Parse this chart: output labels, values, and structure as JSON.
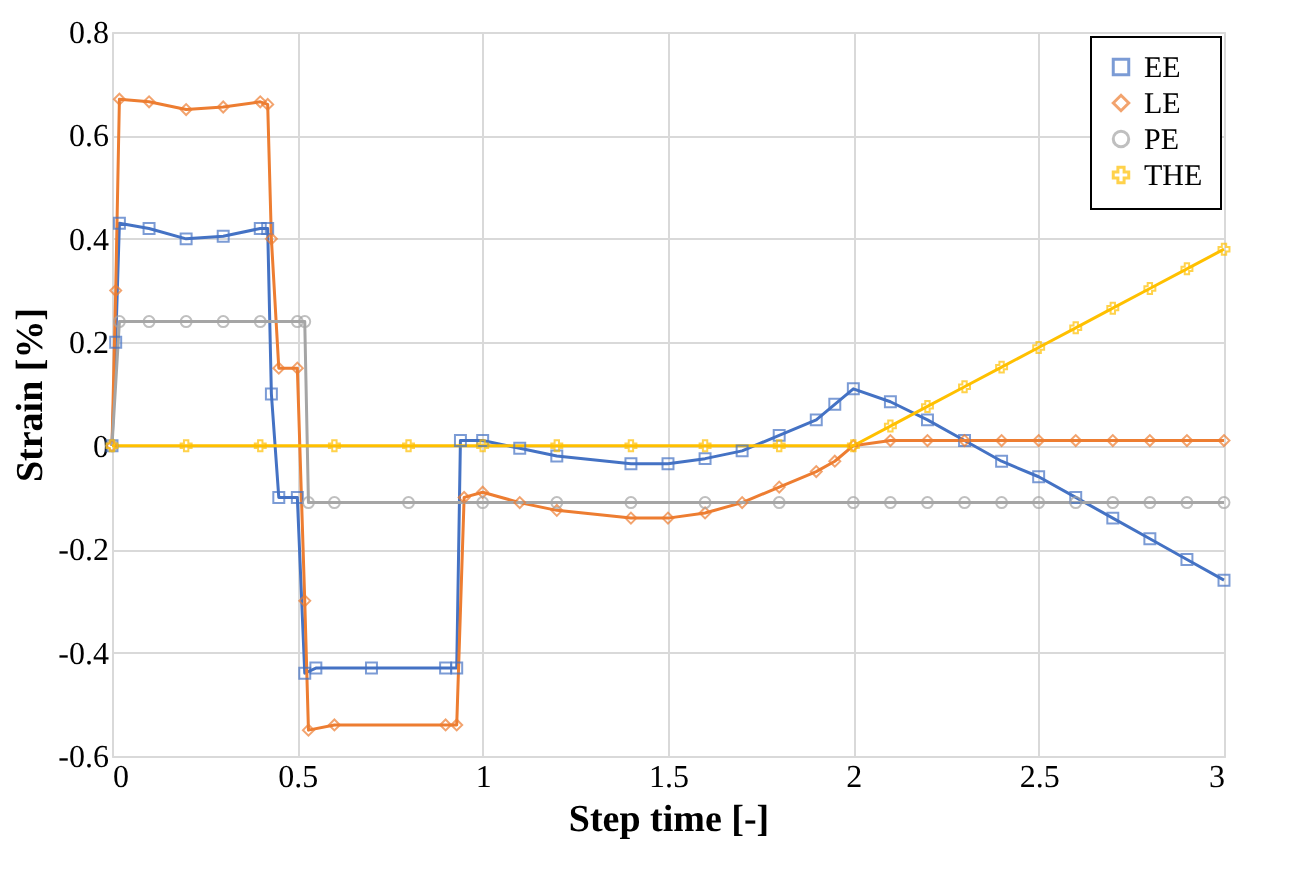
{
  "chart_data": {
    "type": "line",
    "xlabel": "Step time [-]",
    "ylabel": "Strain [%]",
    "xlim": [
      0,
      3
    ],
    "xticks": [
      0,
      0.5,
      1,
      1.5,
      2,
      2.5,
      3
    ],
    "ylim": [
      -0.6,
      0.8
    ],
    "yticks": [
      -0.6,
      -0.4,
      -0.2,
      0,
      0.2,
      0.4,
      0.6,
      0.8
    ],
    "grid": true,
    "legend": "top right",
    "series": [
      {
        "name": "EE",
        "color": "#4472c4",
        "marker": "square",
        "x": [
          0,
          0.01,
          0.02,
          0.1,
          0.2,
          0.3,
          0.4,
          0.42,
          0.43,
          0.45,
          0.5,
          0.52,
          0.55,
          0.7,
          0.9,
          0.93,
          0.94,
          1.0,
          1.1,
          1.2,
          1.4,
          1.5,
          1.6,
          1.7,
          1.8,
          1.9,
          1.95,
          2.0,
          2.1,
          2.2,
          2.3,
          2.4,
          2.5,
          2.6,
          2.7,
          2.8,
          2.9,
          3.0
        ],
        "values": [
          0,
          0.2,
          0.43,
          0.42,
          0.4,
          0.405,
          0.42,
          0.42,
          0.1,
          -0.1,
          -0.1,
          -0.44,
          -0.43,
          -0.43,
          -0.43,
          -0.43,
          0.01,
          0.01,
          -0.005,
          -0.02,
          -0.035,
          -0.035,
          -0.025,
          -0.01,
          0.02,
          0.05,
          0.08,
          0.11,
          0.085,
          0.05,
          0.01,
          -0.03,
          -0.06,
          -0.1,
          -0.14,
          -0.18,
          -0.22,
          -0.26
        ]
      },
      {
        "name": "LE",
        "color": "#ed7d31",
        "marker": "diamond",
        "x": [
          0,
          0.01,
          0.02,
          0.1,
          0.2,
          0.3,
          0.4,
          0.42,
          0.43,
          0.45,
          0.5,
          0.52,
          0.53,
          0.6,
          0.9,
          0.93,
          0.95,
          1.0,
          1.1,
          1.2,
          1.4,
          1.5,
          1.6,
          1.7,
          1.8,
          1.9,
          1.95,
          2.0,
          2.1,
          2.2,
          2.3,
          2.4,
          2.5,
          2.6,
          2.7,
          2.8,
          2.9,
          3.0
        ],
        "values": [
          0,
          0.3,
          0.67,
          0.665,
          0.65,
          0.655,
          0.665,
          0.66,
          0.4,
          0.15,
          0.15,
          -0.3,
          -0.55,
          -0.54,
          -0.54,
          -0.54,
          -0.1,
          -0.09,
          -0.11,
          -0.125,
          -0.14,
          -0.14,
          -0.13,
          -0.11,
          -0.08,
          -0.05,
          -0.03,
          0,
          0.01,
          0.01,
          0.01,
          0.01,
          0.01,
          0.01,
          0.01,
          0.01,
          0.01,
          0.01
        ]
      },
      {
        "name": "PE",
        "color": "#a5a5a5",
        "marker": "circle",
        "x": [
          0,
          0.02,
          0.1,
          0.2,
          0.3,
          0.4,
          0.5,
          0.52,
          0.53,
          0.6,
          0.8,
          1.0,
          1.2,
          1.4,
          1.6,
          1.8,
          2.0,
          2.1,
          2.2,
          2.3,
          2.4,
          2.5,
          2.6,
          2.7,
          2.8,
          2.9,
          3.0
        ],
        "values": [
          0,
          0.24,
          0.24,
          0.24,
          0.24,
          0.24,
          0.24,
          0.24,
          -0.11,
          -0.11,
          -0.11,
          -0.11,
          -0.11,
          -0.11,
          -0.11,
          -0.11,
          -0.11,
          -0.11,
          -0.11,
          -0.11,
          -0.11,
          -0.11,
          -0.11,
          -0.11,
          -0.11,
          -0.11,
          -0.11
        ]
      },
      {
        "name": "THE",
        "color": "#ffc000",
        "marker": "cross",
        "x": [
          0,
          0.2,
          0.4,
          0.6,
          0.8,
          1.0,
          1.2,
          1.4,
          1.6,
          1.8,
          2.0,
          2.1,
          2.2,
          2.3,
          2.4,
          2.5,
          2.6,
          2.7,
          2.8,
          2.9,
          3.0
        ],
        "values": [
          0,
          0,
          0,
          0,
          0,
          0,
          0,
          0,
          0,
          0,
          0,
          0.038,
          0.076,
          0.114,
          0.152,
          0.19,
          0.228,
          0.266,
          0.304,
          0.342,
          0.38
        ]
      }
    ]
  }
}
